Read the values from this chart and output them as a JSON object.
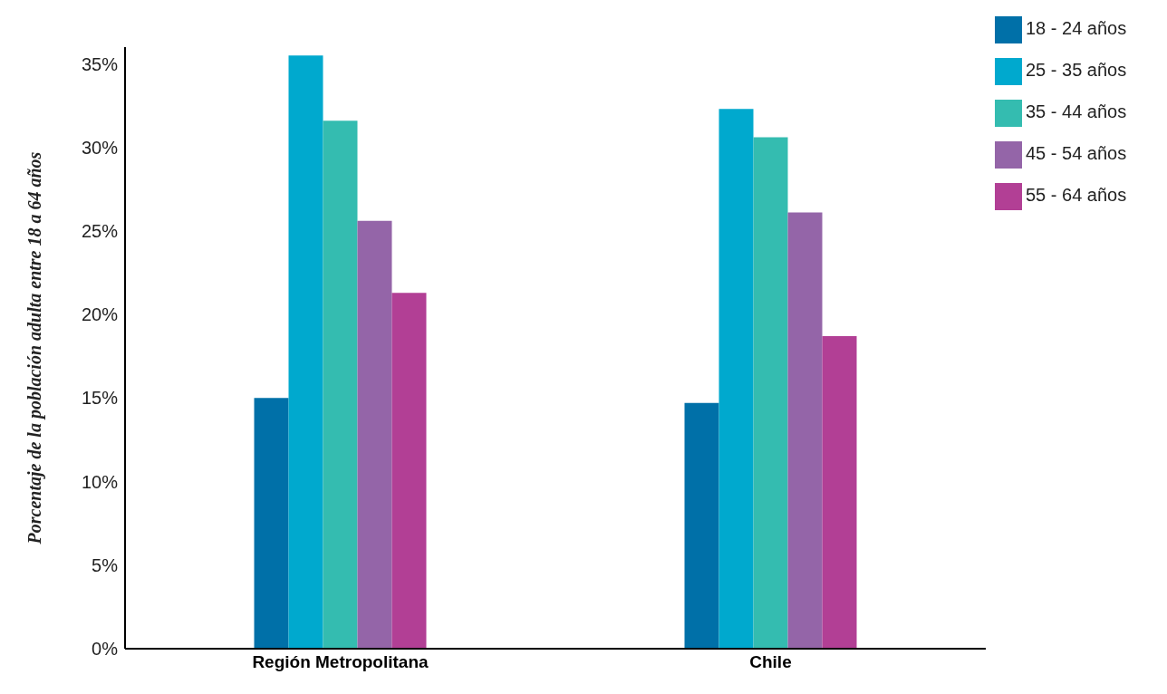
{
  "chart_data": {
    "type": "bar",
    "ylabel": "Porcentaje de la población adulta entre 18 a 64 años",
    "categories": [
      "Región Metropolitana",
      "Chile"
    ],
    "series": [
      {
        "name": "18 - 24 años",
        "color": "#0070a8",
        "values": [
          15,
          14.7
        ]
      },
      {
        "name": "25 - 35 años",
        "color": "#00a9ce",
        "values": [
          35.5,
          32.3
        ]
      },
      {
        "name": "35 - 44 años",
        "color": "#34bcb0",
        "values": [
          31.6,
          30.6
        ]
      },
      {
        "name": "45 - 54 años",
        "color": "#9465a8",
        "values": [
          25.6,
          26.1
        ]
      },
      {
        "name": "55 - 64 años",
        "color": "#b23f95",
        "values": [
          21.3,
          18.7
        ]
      }
    ],
    "ylim": [
      0,
      36
    ],
    "yticks": [
      {
        "value": 0,
        "label": "0%"
      },
      {
        "value": 5,
        "label": "5%"
      },
      {
        "value": 10,
        "label": "10%"
      },
      {
        "value": 15,
        "label": "15%"
      },
      {
        "value": 20,
        "label": "20%"
      },
      {
        "value": 25,
        "label": "25%"
      },
      {
        "value": 30,
        "label": "30%"
      },
      {
        "value": 35,
        "label": "35%"
      }
    ],
    "grid": false,
    "legend": "top right"
  }
}
